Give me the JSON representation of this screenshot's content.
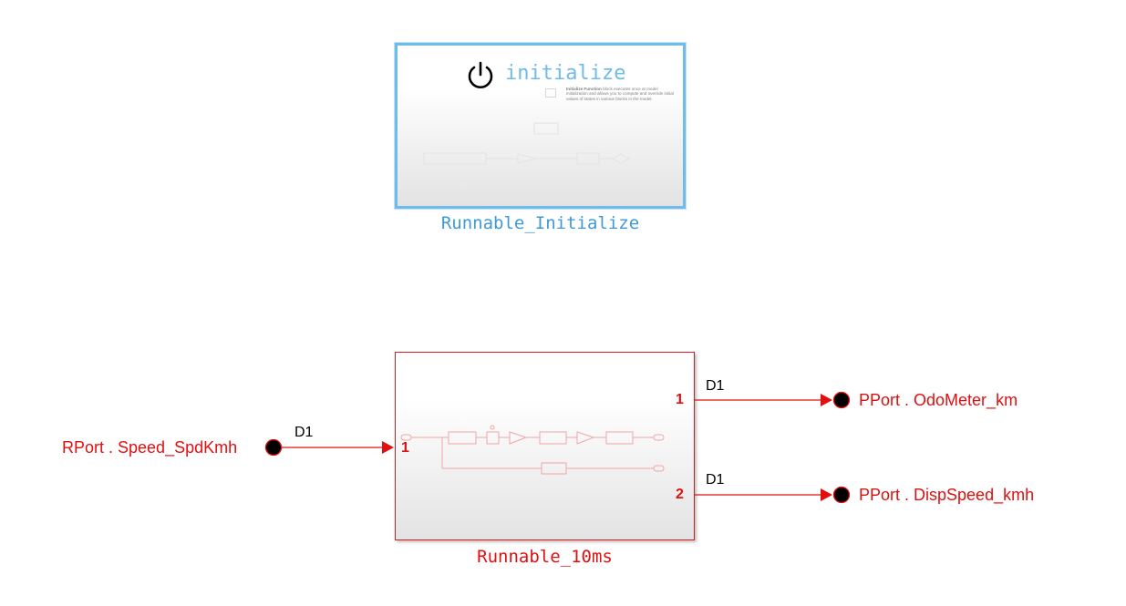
{
  "init_block": {
    "function_label": "initialize",
    "description_bold": "Initialize Function",
    "description_rest": " block executes once at model initialization and allows you to compute and override initial values of states in various blocks in the model.",
    "name": "Runnable_Initialize"
  },
  "runnable_block": {
    "name": "Runnable_10ms",
    "in_port_number": "1",
    "out_port_1_number": "1",
    "out_port_2_number": "2"
  },
  "input_port": {
    "label": "RPort . Speed_SpdKmh",
    "signal": "D1"
  },
  "output_ports": [
    {
      "label": "PPort . OdoMeter_km",
      "signal": "D1"
    },
    {
      "label": "PPort . DispSpeed_kmh",
      "signal": "D1"
    }
  ],
  "colors": {
    "accent_blue": "#6fbbea",
    "block_red": "#d81c1c",
    "port_red": "#e01010"
  }
}
